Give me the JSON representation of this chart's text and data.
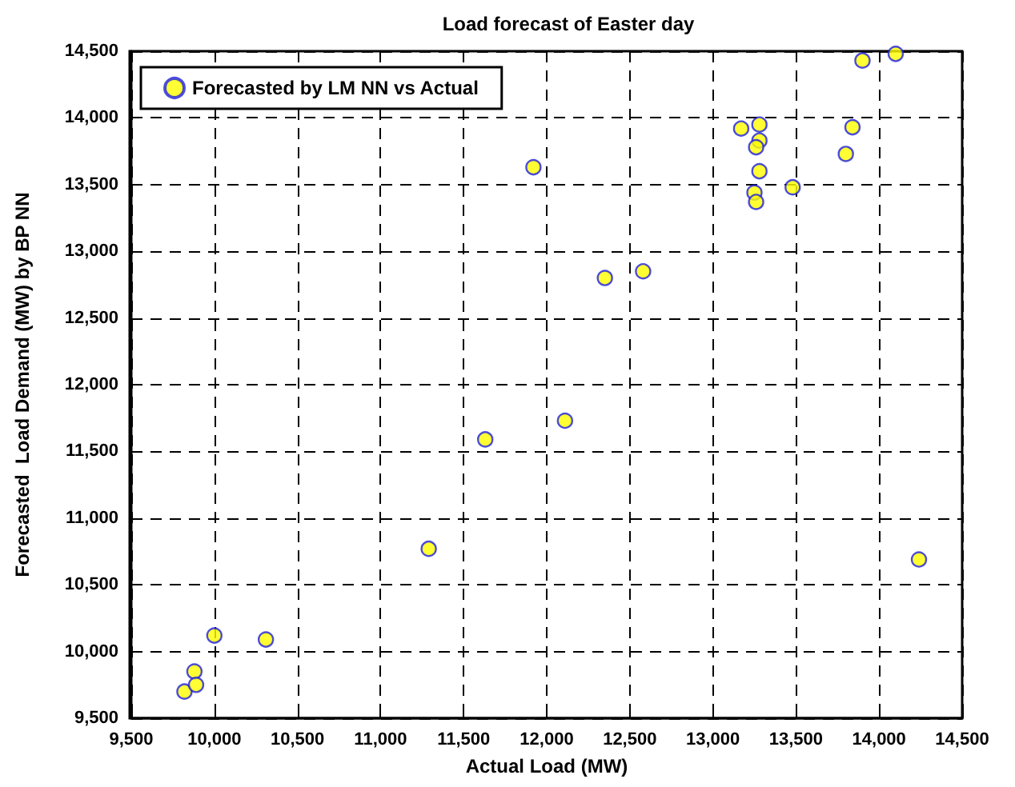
{
  "chart_data": {
    "type": "scatter",
    "title": "Load forecast of Easter day",
    "xlabel": "Actual Load (MW)",
    "ylabel": "Forecasted  Load Demand (MW) by BP NN",
    "x": [
      9820,
      9880,
      9890,
      10000,
      10310,
      11290,
      11630,
      12110,
      14240,
      11920,
      12350,
      12580,
      13170,
      13280,
      13280,
      13260,
      13280,
      13250,
      13260,
      13480,
      13800,
      13840,
      13900,
      14100
    ],
    "series": [
      {
        "name": "Forecasted by LM NN vs Actual",
        "color": "#ffff00",
        "values": [
          9700,
          9850,
          9750,
          10120,
          10090,
          10770,
          11590,
          11730,
          10690,
          13630,
          12800,
          12850,
          13920,
          13950,
          13830,
          13780,
          13600,
          13440,
          13370,
          13480,
          13730,
          13930,
          14430,
          14480
        ]
      }
    ],
    "xlim": [
      9500,
      14500
    ],
    "xticks": [
      {
        "value": 9500,
        "label": "9,500"
      },
      {
        "value": 10000,
        "label": "10,000"
      },
      {
        "value": 10500,
        "label": "10,500"
      },
      {
        "value": 11000,
        "label": "11,000"
      },
      {
        "value": 11500,
        "label": "11,500"
      },
      {
        "value": 12000,
        "label": "12,000"
      },
      {
        "value": 12500,
        "label": "12,500"
      },
      {
        "value": 13000,
        "label": "13,000"
      },
      {
        "value": 13500,
        "label": "13,500"
      },
      {
        "value": 14000,
        "label": "14,000"
      },
      {
        "value": 14500,
        "label": "14,500"
      }
    ],
    "ylim": [
      9500,
      14500
    ],
    "yticks": [
      {
        "value": 9500,
        "label": "9,500"
      },
      {
        "value": 10000,
        "label": "10,000"
      },
      {
        "value": 10500,
        "label": "10,500"
      },
      {
        "value": 11000,
        "label": "11,000"
      },
      {
        "value": 11500,
        "label": "11,500"
      },
      {
        "value": 12000,
        "label": "12,000"
      },
      {
        "value": 12500,
        "label": "12,500"
      },
      {
        "value": 13000,
        "label": "13,000"
      },
      {
        "value": 13500,
        "label": "13,500"
      },
      {
        "value": 14000,
        "label": "14,000"
      },
      {
        "value": 14500,
        "label": "14,500"
      }
    ],
    "grid": true,
    "legend": "top left",
    "marker": "circle"
  }
}
